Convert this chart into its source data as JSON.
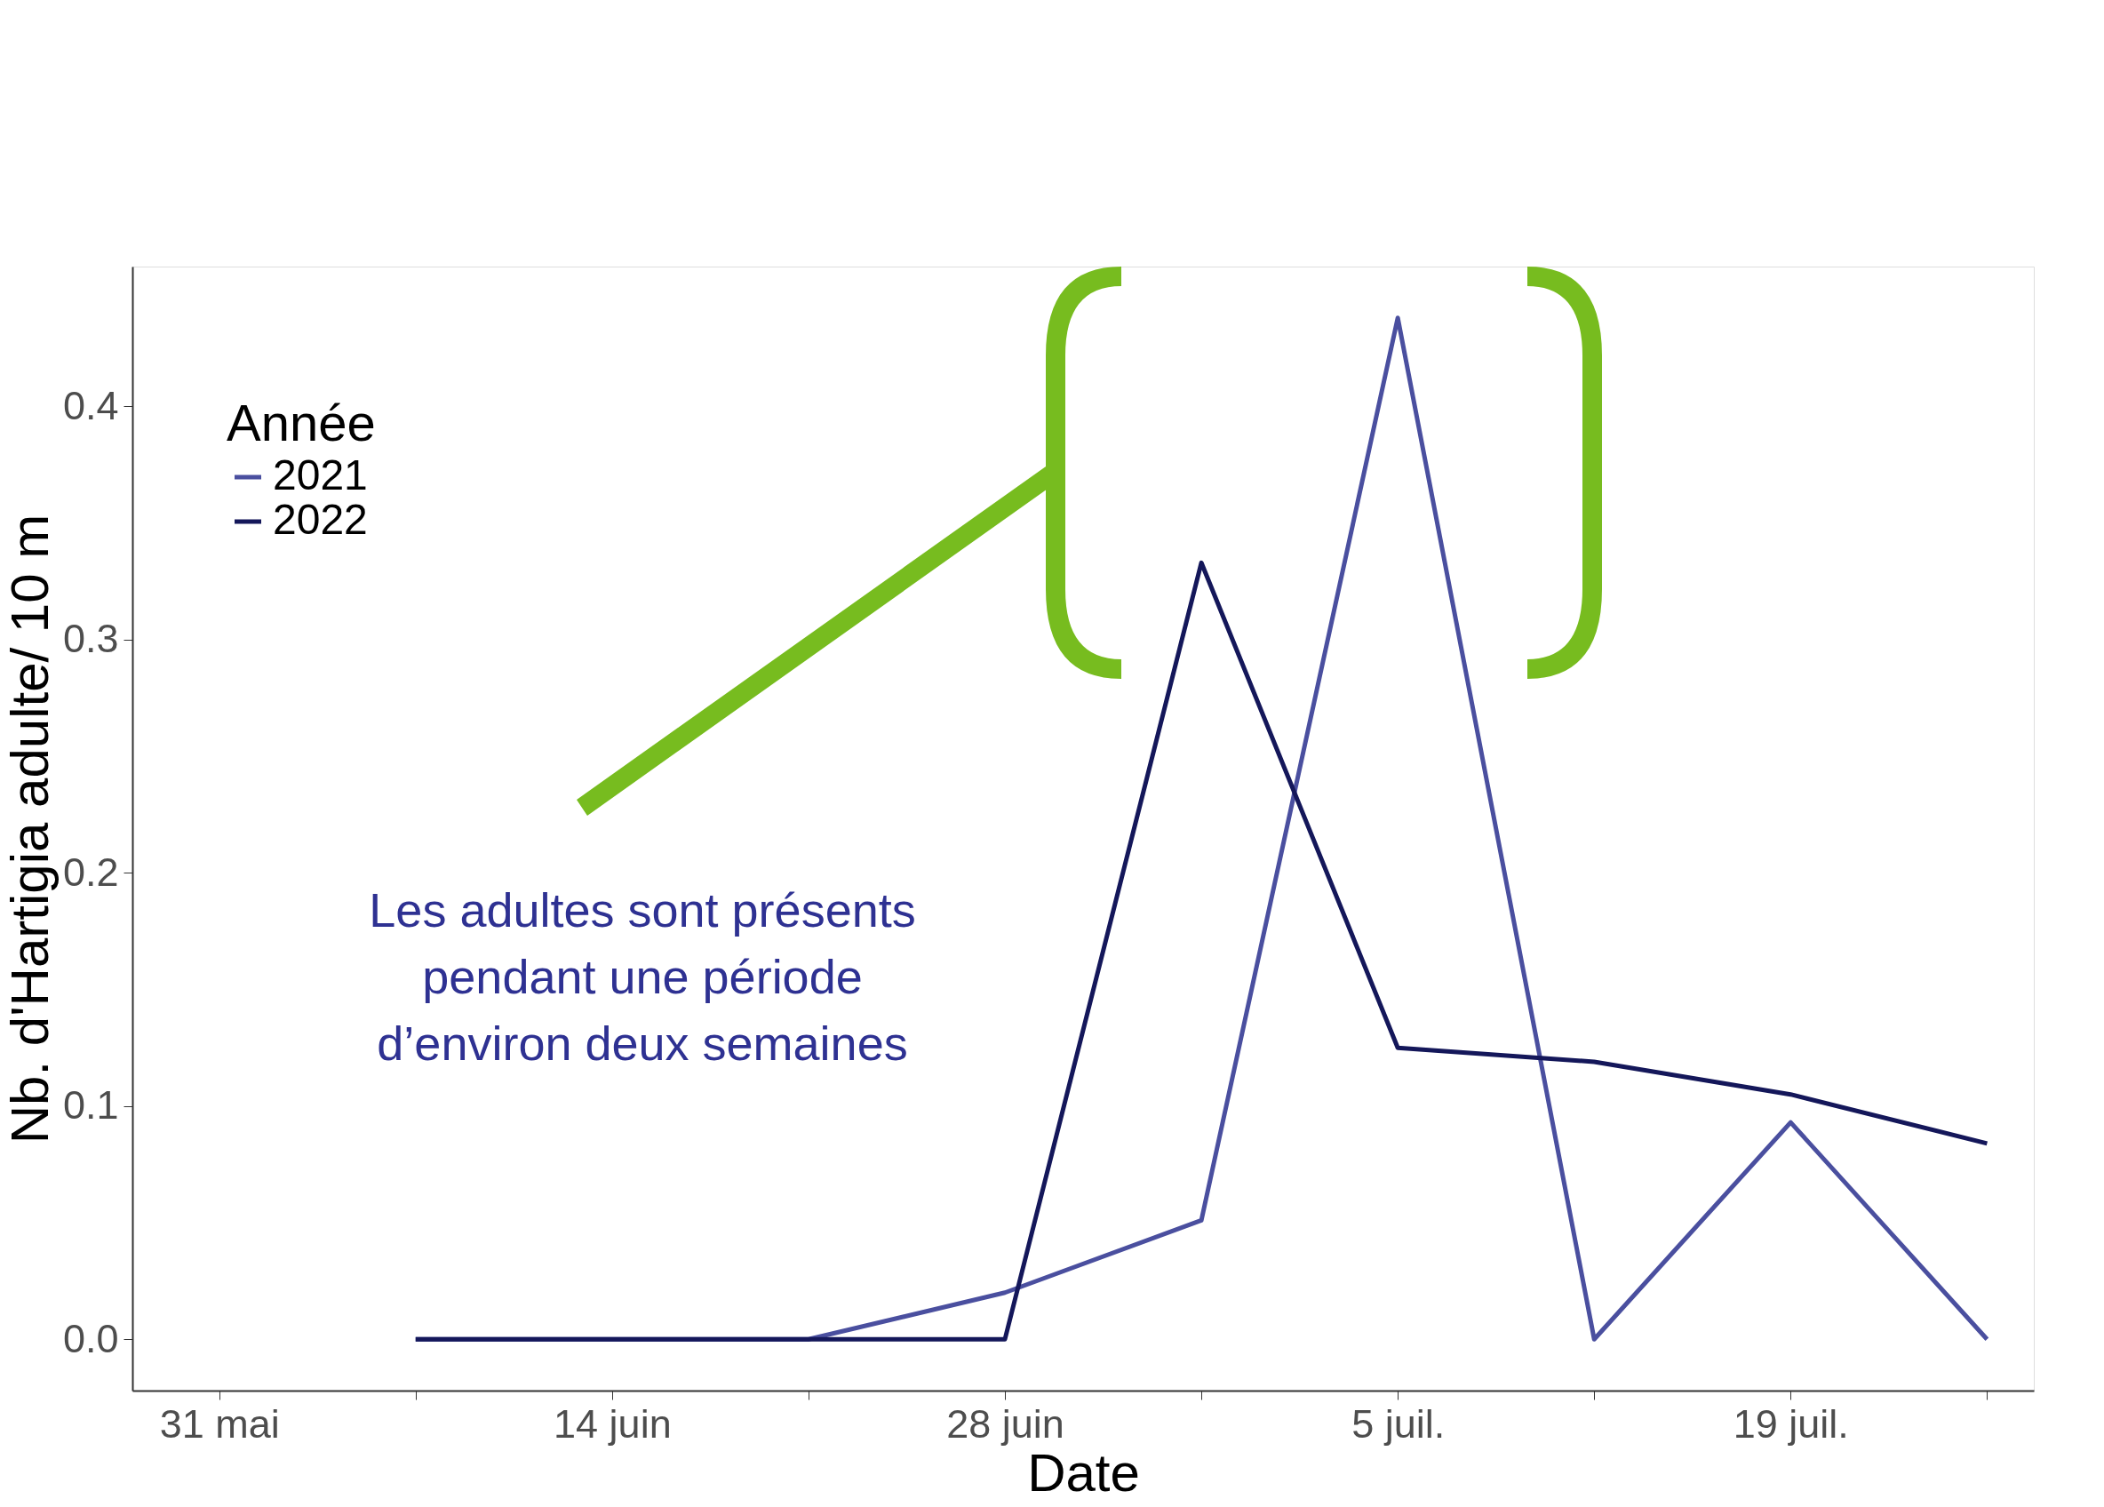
{
  "chart_data": {
    "type": "line",
    "categories": [
      "31 mai",
      null,
      "14 juin",
      null,
      "28 juin",
      null,
      "5 juil.",
      null,
      "19 juil.",
      null
    ],
    "series": [
      {
        "name": "2021",
        "color": "#4a4f9f",
        "values": [
          null,
          0,
          0,
          0,
          0.02,
          0.051,
          0.438,
          0,
          0.093,
          0
        ]
      },
      {
        "name": "2022",
        "color": "#14175a",
        "values": [
          null,
          0,
          0,
          0,
          0,
          0.333,
          0.125,
          0.119,
          0.105,
          0.084
        ]
      }
    ],
    "xlabel": "Date",
    "ylabel": "Nb. d'Hartigia adulte/ 10 m",
    "legend_title": "Année",
    "ylim": [
      -0.022,
      0.46
    ],
    "yticks": [
      {
        "value": 0,
        "label": "0.0"
      },
      0.1,
      0.2,
      0.3,
      0.4
    ],
    "annotations": [
      "Les adultes sont présents\npendant une période\nd’environ deux semaines"
    ],
    "grid": false,
    "legend": "top left",
    "marker": "none",
    "line_style": "solid"
  }
}
